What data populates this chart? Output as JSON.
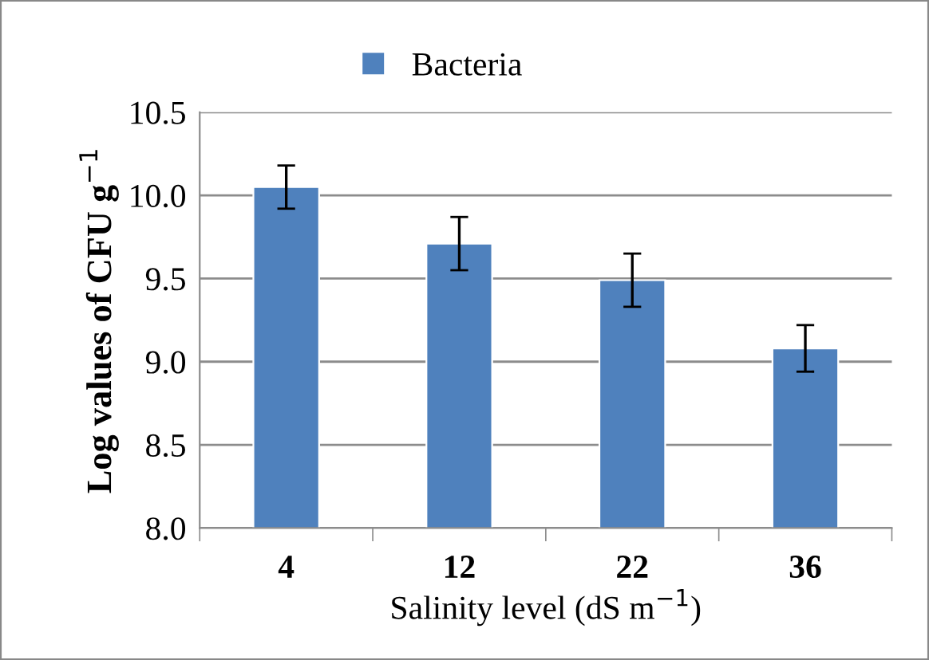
{
  "chart_data": {
    "type": "bar",
    "xlabel": "Salinity level (dS m$^{−1}$)",
    "ylabel": "Log values of CFU g$^{−1}$",
    "categories": [
      "4",
      "12",
      "22",
      "36"
    ],
    "series": [
      {
        "name": "Bacteria",
        "color": "#4f81bd",
        "values": [
          10.05,
          9.71,
          9.49,
          9.08
        ],
        "errors": [
          0.13,
          0.16,
          0.16,
          0.14
        ]
      }
    ],
    "ylim": [
      8.0,
      10.5
    ],
    "yticks": [
      {
        "value": 8.0,
        "label": "8.0"
      },
      {
        "value": 8.5,
        "label": "8.5"
      },
      {
        "value": 9.0,
        "label": "9.0"
      },
      {
        "value": 9.5,
        "label": "9.5"
      },
      {
        "value": 10.0,
        "label": "10.0"
      },
      {
        "value": 10.5,
        "label": "10.5"
      }
    ],
    "grid": "y",
    "legend": "top"
  }
}
